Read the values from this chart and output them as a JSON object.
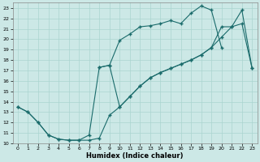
{
  "xlabel": "Humidex (Indice chaleur)",
  "xlim": [
    -0.5,
    23.5
  ],
  "ylim": [
    10,
    23.5
  ],
  "xticks": [
    0,
    1,
    2,
    3,
    4,
    5,
    6,
    7,
    8,
    9,
    10,
    11,
    12,
    13,
    14,
    15,
    16,
    17,
    18,
    19,
    20,
    21,
    22,
    23
  ],
  "yticks": [
    10,
    11,
    12,
    13,
    14,
    15,
    16,
    17,
    18,
    19,
    20,
    21,
    22,
    23
  ],
  "bg_color": "#cce8e6",
  "grid_color": "#aad4d0",
  "line_color": "#1a6b6b",
  "line1_x": [
    0,
    1,
    2,
    3,
    4,
    5,
    6,
    7,
    8,
    9,
    10,
    11,
    12,
    13,
    14,
    15,
    16,
    17,
    18,
    19,
    20,
    21,
    22,
    23
  ],
  "line1_y": [
    13.5,
    13.0,
    12.0,
    10.8,
    10.4,
    10.3,
    10.3,
    10.3,
    10.5,
    12.7,
    13.5,
    14.5,
    15.5,
    16.3,
    16.8,
    17.2,
    17.6,
    18.0,
    18.5,
    19.2,
    20.2,
    21.2,
    21.5,
    17.2
  ],
  "line2_x": [
    0,
    1,
    2,
    3,
    4,
    5,
    6,
    7,
    8,
    9,
    10,
    11,
    12,
    13,
    14,
    15,
    16,
    17,
    18,
    19,
    20
  ],
  "line2_y": [
    13.5,
    13.0,
    12.0,
    10.8,
    10.4,
    10.3,
    10.3,
    10.8,
    17.3,
    17.5,
    19.9,
    20.5,
    21.2,
    21.3,
    21.5,
    21.8,
    21.5,
    22.5,
    23.2,
    22.8,
    19.2
  ],
  "line3_x": [
    8,
    9,
    10,
    11,
    12,
    13,
    14,
    15,
    16,
    17,
    18,
    19,
    20,
    21,
    22,
    23
  ],
  "line3_y": [
    17.3,
    17.5,
    13.5,
    14.5,
    15.5,
    16.3,
    16.8,
    17.2,
    17.6,
    18.0,
    18.5,
    19.2,
    21.2,
    21.2,
    22.8,
    17.2
  ]
}
